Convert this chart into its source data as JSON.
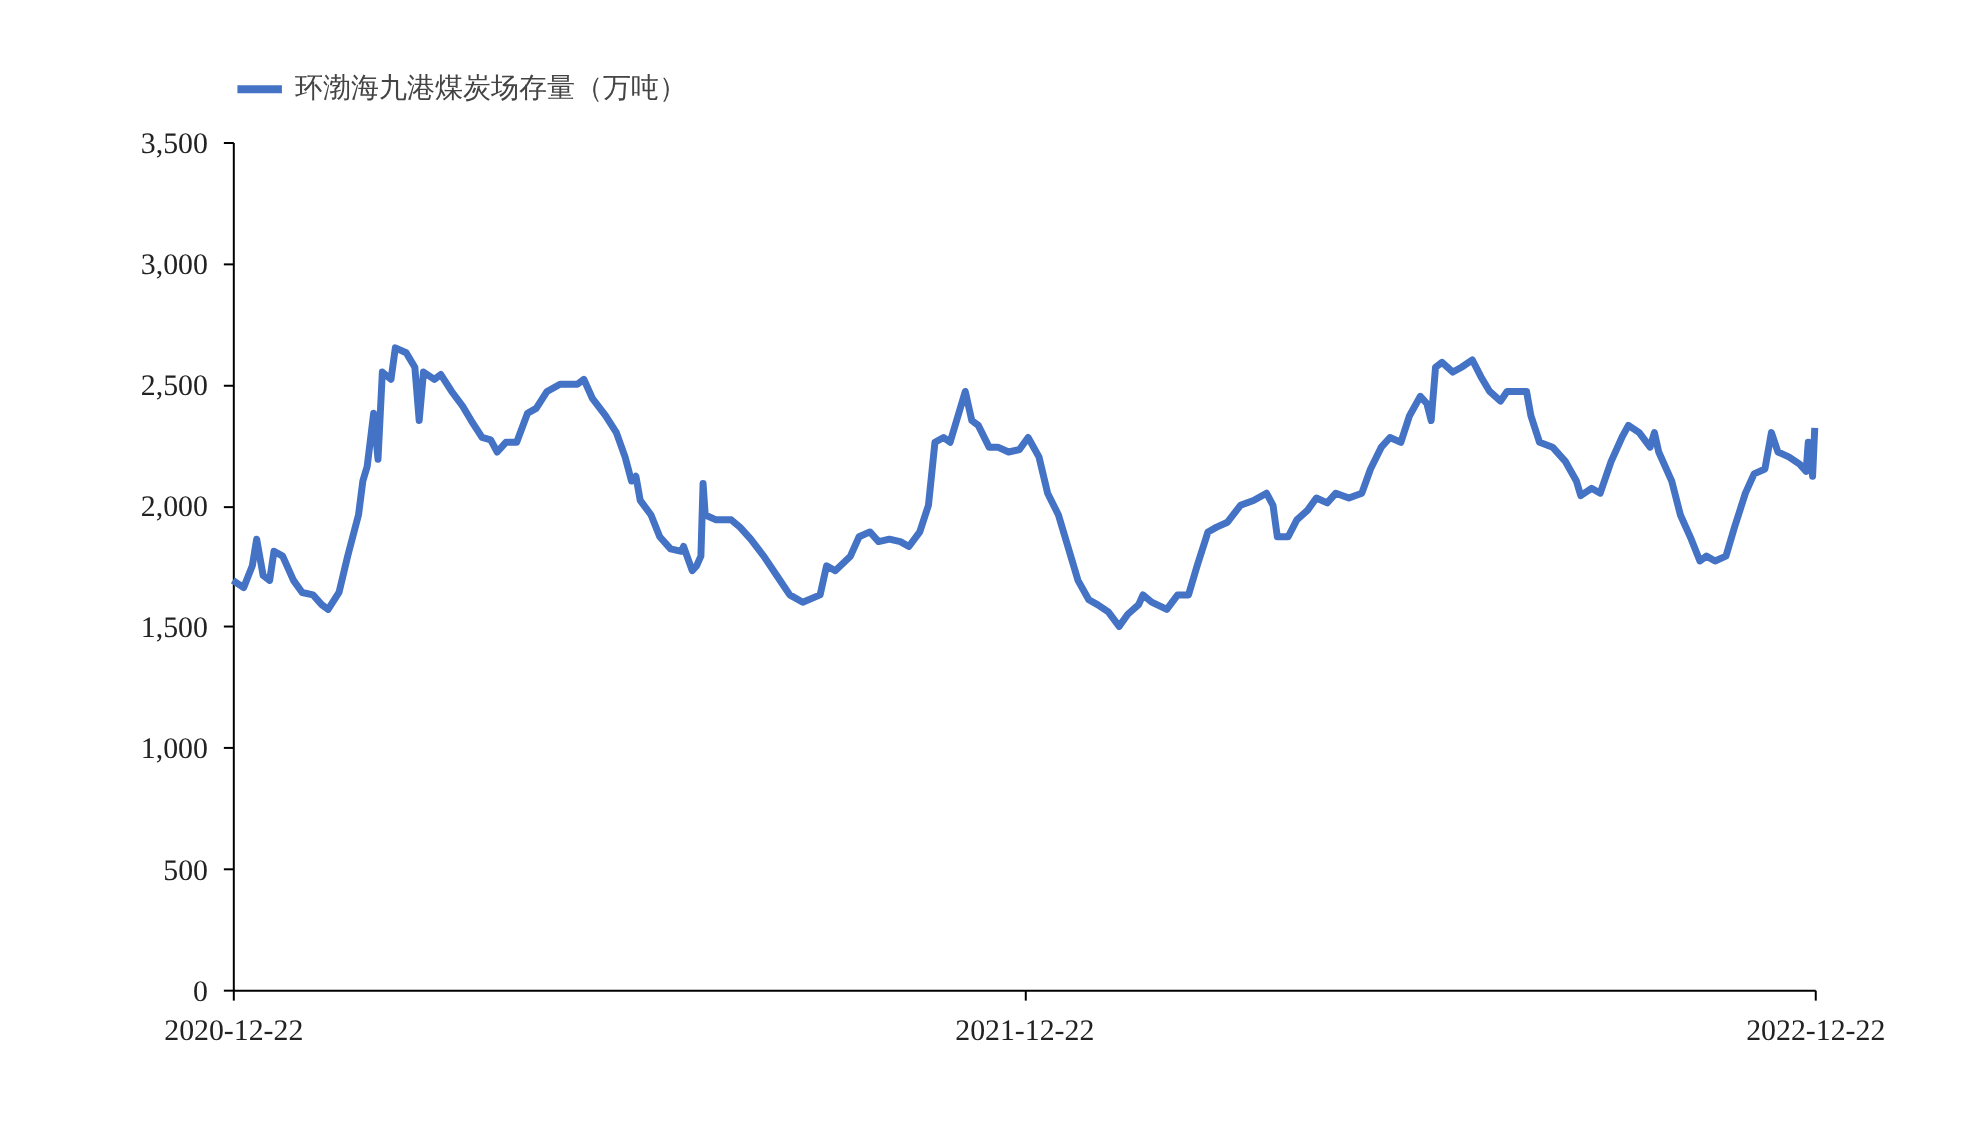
{
  "chart_data": {
    "type": "line",
    "legend": "top",
    "grid": false,
    "ylim": [
      0,
      3500
    ],
    "yticks": [
      {
        "value": 0,
        "label": "0"
      },
      {
        "value": 500,
        "label": "500"
      },
      {
        "value": 1000,
        "label": "1,000"
      },
      {
        "value": 1500,
        "label": "1,500"
      },
      {
        "value": 2000,
        "label": "2,000"
      },
      {
        "value": 2500,
        "label": "2,500"
      },
      {
        "value": 3000,
        "label": "3,000"
      },
      {
        "value": 3500,
        "label": "3,500"
      }
    ],
    "xlim": [
      "2020-12-22",
      "2022-12-22"
    ],
    "xticks": [
      "2020-12-22",
      "2021-12-22",
      "2022-12-22"
    ],
    "x": [
      "2020-12-22",
      "2020-12-27",
      "2020-12-31",
      "2021-01-02",
      "2021-01-05",
      "2021-01-08",
      "2021-01-10",
      "2021-01-14",
      "2021-01-19",
      "2021-01-23",
      "2021-01-28",
      "2021-02-01",
      "2021-02-04",
      "2021-02-09",
      "2021-02-13",
      "2021-02-18",
      "2021-02-20",
      "2021-02-22",
      "2021-02-25",
      "2021-02-27",
      "2021-03-01",
      "2021-03-05",
      "2021-03-07",
      "2021-03-12",
      "2021-03-16",
      "2021-03-18",
      "2021-03-20",
      "2021-03-25",
      "2021-03-28",
      "2021-04-02",
      "2021-04-07",
      "2021-04-11",
      "2021-04-16",
      "2021-04-20",
      "2021-04-23",
      "2021-04-27",
      "2021-05-02",
      "2021-05-07",
      "2021-05-11",
      "2021-05-16",
      "2021-05-22",
      "2021-05-30",
      "2021-06-02",
      "2021-06-06",
      "2021-06-12",
      "2021-06-17",
      "2021-06-21",
      "2021-06-24",
      "2021-06-26",
      "2021-06-28",
      "2021-07-03",
      "2021-07-07",
      "2021-07-12",
      "2021-07-17",
      "2021-07-18",
      "2021-07-22",
      "2021-07-24",
      "2021-07-26",
      "2021-07-27",
      "2021-07-28",
      "2021-08-02",
      "2021-08-09",
      "2021-08-13",
      "2021-08-18",
      "2021-08-24",
      "2021-08-30",
      "2021-09-05",
      "2021-09-11",
      "2021-09-19",
      "2021-09-22",
      "2021-09-26",
      "2021-10-03",
      "2021-10-07",
      "2021-10-12",
      "2021-10-16",
      "2021-10-21",
      "2021-10-26",
      "2021-10-30",
      "2021-11-04",
      "2021-11-08",
      "2021-11-11",
      "2021-11-15",
      "2021-11-18",
      "2021-11-22",
      "2021-11-25",
      "2021-11-28",
      "2021-12-01",
      "2021-12-06",
      "2021-12-10",
      "2021-12-15",
      "2021-12-20",
      "2021-12-24",
      "2021-12-29",
      "2022-01-02",
      "2022-01-07",
      "2022-01-12",
      "2022-01-16",
      "2022-01-21",
      "2022-01-25",
      "2022-01-30",
      "2022-02-04",
      "2022-02-08",
      "2022-02-13",
      "2022-02-15",
      "2022-02-19",
      "2022-02-26",
      "2022-03-03",
      "2022-03-08",
      "2022-03-12",
      "2022-03-17",
      "2022-03-21",
      "2022-03-26",
      "2022-04-01",
      "2022-04-07",
      "2022-04-13",
      "2022-04-16",
      "2022-04-18",
      "2022-04-23",
      "2022-04-27",
      "2022-05-02",
      "2022-05-06",
      "2022-05-11",
      "2022-05-15",
      "2022-05-21",
      "2022-05-27",
      "2022-05-31",
      "2022-06-05",
      "2022-06-09",
      "2022-06-14",
      "2022-06-18",
      "2022-06-23",
      "2022-06-26",
      "2022-06-28",
      "2022-06-30",
      "2022-07-03",
      "2022-07-08",
      "2022-07-12",
      "2022-07-17",
      "2022-07-21",
      "2022-07-25",
      "2022-07-30",
      "2022-08-02",
      "2022-08-06",
      "2022-08-11",
      "2022-08-13",
      "2022-08-17",
      "2022-08-23",
      "2022-08-29",
      "2022-09-03",
      "2022-09-05",
      "2022-09-10",
      "2022-09-14",
      "2022-09-19",
      "2022-09-24",
      "2022-09-27",
      "2022-10-02",
      "2022-10-07",
      "2022-10-09",
      "2022-10-11",
      "2022-10-17",
      "2022-10-21",
      "2022-10-26",
      "2022-10-30",
      "2022-11-02",
      "2022-11-06",
      "2022-11-11",
      "2022-11-15",
      "2022-11-20",
      "2022-11-24",
      "2022-11-29",
      "2022-12-02",
      "2022-12-05",
      "2022-12-10",
      "2022-12-15",
      "2022-12-18",
      "2022-12-19",
      "2022-12-21",
      "2022-12-22"
    ],
    "series": [
      {
        "name": "环渤海九港煤炭场存量（万吨）",
        "color": "#4472c4",
        "values": [
          1690,
          1660,
          1750,
          1860,
          1710,
          1690,
          1810,
          1790,
          1690,
          1640,
          1630,
          1590,
          1570,
          1640,
          1790,
          1960,
          2100,
          2160,
          2380,
          2190,
          2550,
          2520,
          2650,
          2630,
          2570,
          2350,
          2550,
          2520,
          2540,
          2470,
          2410,
          2350,
          2280,
          2270,
          2220,
          2260,
          2260,
          2380,
          2400,
          2470,
          2500,
          2500,
          2520,
          2440,
          2370,
          2300,
          2200,
          2100,
          2120,
          2020,
          1960,
          1870,
          1820,
          1810,
          1830,
          1730,
          1750,
          1790,
          2090,
          1960,
          1940,
          1940,
          1910,
          1860,
          1790,
          1710,
          1630,
          1600,
          1630,
          1750,
          1730,
          1790,
          1870,
          1890,
          1850,
          1860,
          1850,
          1830,
          1890,
          2000,
          2260,
          2280,
          2260,
          2380,
          2470,
          2350,
          2330,
          2240,
          2240,
          2220,
          2230,
          2280,
          2200,
          2050,
          1960,
          1810,
          1690,
          1610,
          1590,
          1560,
          1500,
          1550,
          1590,
          1630,
          1600,
          1570,
          1630,
          1630,
          1750,
          1890,
          1910,
          1930,
          2000,
          2020,
          2050,
          2000,
          1870,
          1870,
          1940,
          1980,
          2030,
          2010,
          2050,
          2030,
          2050,
          2150,
          2240,
          2280,
          2260,
          2370,
          2450,
          2420,
          2350,
          2570,
          2590,
          2550,
          2570,
          2600,
          2530,
          2470,
          2430,
          2470,
          2470,
          2470,
          2370,
          2260,
          2240,
          2180,
          2100,
          2040,
          2070,
          2050,
          2180,
          2280,
          2330,
          2300,
          2240,
          2300,
          2220,
          2100,
          1960,
          1860,
          1770,
          1790,
          1770,
          1790,
          1910,
          2050,
          2130,
          2150,
          2300,
          2220,
          2200,
          2170,
          2140,
          2260,
          2120,
          2320
        ]
      }
    ]
  }
}
